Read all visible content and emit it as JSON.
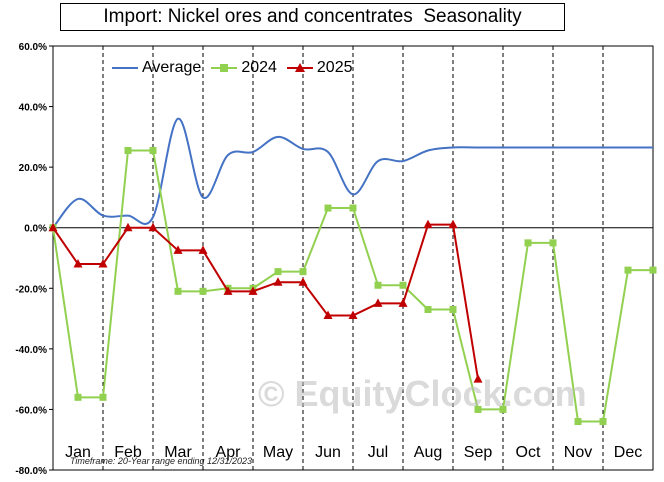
{
  "chart_data": {
    "type": "line",
    "title": "Import: Nickel ores and concentrates  Seasonality",
    "footnote": "Timeframe: 20-Year range ending 12/31/2023",
    "watermark": "© EquityClock.com",
    "ylim": [
      -80,
      60
    ],
    "yticks": [
      60,
      40,
      20,
      0,
      -20,
      -40,
      -60,
      -80
    ],
    "ytick_labels": [
      "60.0%",
      "40.0%",
      "20.0%",
      "0.0%",
      "-20.0%",
      "-40.0%",
      "-60.0%",
      "-80.0%"
    ],
    "xlim": [
      0,
      12
    ],
    "month_labels": [
      "Jan",
      "Feb",
      "Mar",
      "Apr",
      "May",
      "Jun",
      "Jul",
      "Aug",
      "Sep",
      "Oct",
      "Nov",
      "Dec"
    ],
    "grid": "vertical dashed month dividers",
    "legend": "top-left",
    "series": [
      {
        "name": "Average",
        "color": "#4472c4",
        "marker": "none",
        "smooth": true,
        "x": [
          0,
          0.5,
          1,
          1.5,
          2,
          2.5,
          3,
          3.5,
          4,
          4.5,
          5,
          5.5,
          6,
          6.5,
          7,
          7.5,
          8,
          8.5,
          9,
          9.5,
          10,
          10.5,
          11,
          11.5,
          12
        ],
        "y": [
          0,
          9.5,
          4,
          4,
          3.5,
          36,
          10,
          24,
          25,
          30,
          26,
          25,
          11,
          22,
          22,
          25.5,
          26.5,
          26.5,
          26.5,
          26.5,
          26.5,
          26.5,
          26.5,
          26.5,
          26.5
        ]
      },
      {
        "name": "2024",
        "color": "#92d050",
        "marker": "square",
        "smooth": false,
        "x": [
          0,
          0.5,
          1,
          1.5,
          2,
          2.5,
          3,
          3.5,
          4,
          4.5,
          5,
          5.5,
          6,
          6.5,
          7,
          7.5,
          8,
          8.5,
          9,
          9.5,
          10,
          10.5,
          11,
          11.5,
          12
        ],
        "y": [
          0,
          -56,
          -56,
          25.5,
          25.5,
          -21,
          -21,
          -20,
          -20,
          -14.5,
          -14.5,
          6.5,
          6.5,
          -19,
          -19,
          -27,
          -27,
          -60,
          -60,
          -5,
          -5,
          -64,
          -64,
          -14,
          -14
        ]
      },
      {
        "name": "2025",
        "color": "#c00000",
        "marker": "triangle",
        "smooth": false,
        "x": [
          0,
          0.5,
          1,
          1.5,
          2,
          2.5,
          3,
          3.5,
          4,
          4.5,
          5,
          5.5,
          6,
          6.5,
          7,
          7.5,
          8,
          8.5
        ],
        "y": [
          0,
          -12,
          -12,
          0,
          0,
          -7.5,
          -7.5,
          -21,
          -21,
          -18,
          -18,
          -29,
          -29,
          -25,
          -25,
          1,
          1,
          -50
        ]
      }
    ]
  }
}
